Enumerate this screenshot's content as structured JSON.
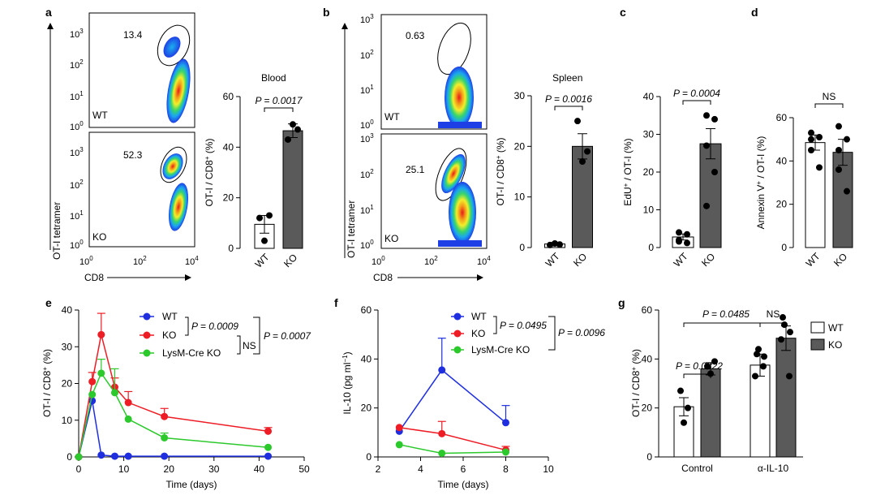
{
  "panels": {
    "a": {
      "letter": "a",
      "title": "Blood",
      "flow_top_value": "13.4",
      "flow_top_genotype": "WT",
      "flow_bottom_value": "52.3",
      "flow_bottom_genotype": "KO",
      "flow_ylabel": "OT-I tetramer",
      "flow_xlabel": "CD8",
      "pvalue": "P = 0.0017"
    },
    "b": {
      "letter": "b",
      "title": "Spleen",
      "flow_top_value": "0.63",
      "flow_top_genotype": "WT",
      "flow_bottom_value": "25.1",
      "flow_bottom_genotype": "KO",
      "flow_ylabel": "OT-I tetramer",
      "flow_xlabel": "CD8",
      "pvalue": "P = 0.0016"
    },
    "c": {
      "letter": "c",
      "pvalue": "P = 0.0004"
    },
    "d": {
      "letter": "d",
      "pvalue": "NS"
    },
    "e": {
      "letter": "e",
      "p1": "P = 0.0009",
      "p2": "NS",
      "p3": "P = 0.0007"
    },
    "f": {
      "letter": "f",
      "p1": "P = 0.0495",
      "p2": "P = 0.0096"
    },
    "g": {
      "letter": "g",
      "p_top": "P = 0.0485",
      "p_ns": "NS",
      "p_ctrl": "P = 0.0322"
    }
  },
  "flow_axis": {
    "y_ticks": [
      "10^3",
      "10^2",
      "10^1",
      "10^0"
    ],
    "x_ticks": [
      "10^0",
      "10^2",
      "10^4"
    ]
  },
  "colors": {
    "wt_blue": "#1f2fe0",
    "ko_red": "#ee1c25",
    "lysm_green": "#2cc92c",
    "ko_gray": "#5a5a5a",
    "error_red": "#ee1c25"
  },
  "chart_data": [
    {
      "panel": "a",
      "type": "bar",
      "title": "Blood",
      "categories": [
        "WT",
        "KO"
      ],
      "values": [
        9.5,
        46.5
      ],
      "sem": [
        3.5,
        2.7
      ],
      "points": [
        [
          12,
          3,
          13
        ],
        [
          43,
          49,
          47
        ]
      ],
      "ylabel": "OT-I / CD8+ (%)",
      "ylim": [
        0,
        60
      ],
      "yticks": [
        0,
        20,
        40,
        60
      ]
    },
    {
      "panel": "b",
      "type": "bar",
      "title": "Spleen",
      "categories": [
        "WT",
        "KO"
      ],
      "values": [
        0.7,
        20
      ],
      "sem": [
        0.3,
        2.5
      ],
      "points": [
        [
          0.5,
          0.8,
          0.6
        ],
        [
          25,
          17,
          19
        ]
      ],
      "ylabel": "OT-I / CD8+ (%)",
      "ylim": [
        0,
        30
      ],
      "yticks": [
        0,
        10,
        20,
        30
      ]
    },
    {
      "panel": "c",
      "type": "bar",
      "categories": [
        "WT",
        "KO"
      ],
      "values": [
        2.8,
        27.5
      ],
      "sem": [
        0.8,
        4
      ],
      "points": [
        [
          2,
          1.2,
          4,
          3.5,
          1.6
        ],
        [
          35,
          34,
          27,
          20,
          11
        ]
      ],
      "ylabel": "EdU+ / OT-I (%)",
      "ylim": [
        0,
        40
      ],
      "yticks": [
        0,
        10,
        20,
        30,
        40
      ]
    },
    {
      "panel": "d",
      "type": "bar",
      "categories": [
        "WT",
        "KO"
      ],
      "values": [
        48.5,
        44
      ],
      "sem": [
        3.5,
        6
      ],
      "points": [
        [
          50,
          51,
          45,
          37,
          53
        ],
        [
          56,
          50,
          45,
          26,
          36
        ]
      ],
      "ylabel": "Annexin V+ / OT-I (%)",
      "ylim": [
        0,
        60
      ],
      "yticks": [
        0,
        20,
        40,
        60
      ]
    },
    {
      "panel": "e",
      "type": "line",
      "xlabel": "Time (days)",
      "ylabel": "OT-I / CD8+ (%)",
      "xlim": [
        0,
        50
      ],
      "ylim": [
        0,
        40
      ],
      "xticks": [
        0,
        10,
        20,
        30,
        40,
        50
      ],
      "yticks": [
        0,
        10,
        20,
        30,
        40
      ],
      "series": [
        {
          "name": "WT",
          "x": [
            0,
            3,
            5,
            8,
            11,
            19,
            42
          ],
          "y": [
            0,
            15.3,
            0.5,
            0.2,
            0.2,
            0.2,
            0.2
          ],
          "err": [
            0,
            0,
            0,
            0,
            0,
            0,
            0
          ]
        },
        {
          "name": "KO",
          "x": [
            0,
            3,
            5,
            8,
            11,
            19,
            42
          ],
          "y": [
            0,
            20.5,
            33.3,
            19,
            14.8,
            11,
            7
          ],
          "err": [
            0,
            2.5,
            5.8,
            2.5,
            3,
            2.2,
            1
          ]
        },
        {
          "name": "LysM-Cre KO",
          "x": [
            0,
            3,
            5,
            8,
            11,
            19,
            42
          ],
          "y": [
            0,
            17,
            22.8,
            17.5,
            10.3,
            5.2,
            2.6
          ],
          "err": [
            0,
            0,
            3.8,
            6.5,
            0,
            1.3,
            0
          ]
        }
      ]
    },
    {
      "panel": "f",
      "type": "line",
      "xlabel": "Time (days)",
      "ylabel": "IL-10 (pg ml-1)",
      "xlim": [
        2,
        10
      ],
      "ylim": [
        0,
        60
      ],
      "xticks": [
        2,
        4,
        6,
        8,
        10
      ],
      "yticks": [
        0,
        20,
        40,
        60
      ],
      "series": [
        {
          "name": "WT",
          "x": [
            3,
            5,
            8
          ],
          "y": [
            10.5,
            35.5,
            14
          ],
          "err": [
            0,
            13,
            7
          ]
        },
        {
          "name": "KO",
          "x": [
            3,
            5,
            8
          ],
          "y": [
            12,
            9.5,
            2.8
          ],
          "err": [
            0,
            5,
            1.5
          ]
        },
        {
          "name": "LysM-Cre KO",
          "x": [
            3,
            5,
            8
          ],
          "y": [
            5,
            1.5,
            2
          ],
          "err": [
            0,
            0,
            0
          ]
        }
      ]
    },
    {
      "panel": "g",
      "type": "bar",
      "categories": [
        "Control",
        "α-IL-10"
      ],
      "series": [
        {
          "name": "WT",
          "values": [
            20.5,
            37.5
          ],
          "sem": [
            3.7,
            4.5
          ],
          "points": [
            [
              27,
              20,
              14
            ],
            [
              42,
              41,
              33,
              37,
              44
            ]
          ]
        },
        {
          "name": "KO",
          "values": [
            36,
            48.5
          ],
          "sem": [
            2.5,
            5
          ],
          "points": [
            [
              37,
              39,
              34
            ],
            [
              57,
              51,
              48,
              33,
              54
            ]
          ]
        }
      ],
      "ylabel": "OT-I / CD8+ (%)",
      "ylim": [
        0,
        60
      ],
      "yticks": [
        0,
        20,
        40,
        60
      ]
    }
  ]
}
